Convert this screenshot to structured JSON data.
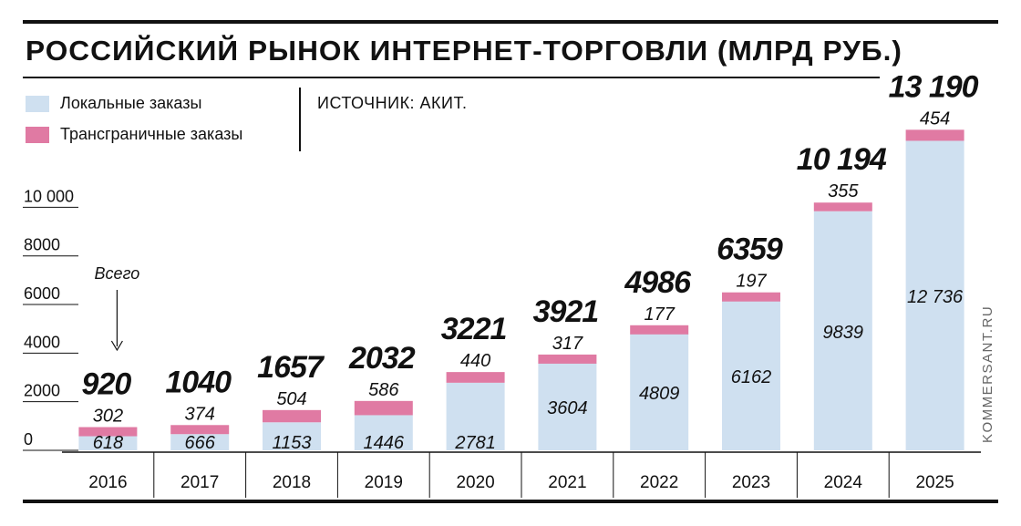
{
  "header": {
    "title": "РОССИЙСКИЙ РЫНОК ИНТЕРНЕТ-ТОРГОВЛИ (МЛРД РУБ.)",
    "source": "ИСТОЧНИК: АКИТ."
  },
  "legend": [
    {
      "label": "Локальные заказы",
      "color": "#cfe0f0"
    },
    {
      "label": "Трансграничные заказы",
      "color": "#e07aa3"
    }
  ],
  "watermark": "KOMMERSANT.RU",
  "annotation": "Всего",
  "chart_data": {
    "type": "bar",
    "categories": [
      "2016",
      "2017",
      "2018",
      "2019",
      "2020",
      "2021",
      "2022",
      "2023",
      "2024",
      "2025"
    ],
    "series": [
      {
        "name": "Локальные заказы",
        "values": [
          618,
          666,
          1153,
          1446,
          2781,
          3604,
          4809,
          6162,
          9839,
          12736
        ],
        "color": "#cfe0f0"
      },
      {
        "name": "Трансграничные заказы",
        "values": [
          302,
          374,
          504,
          586,
          440,
          317,
          177,
          197,
          355,
          454
        ],
        "color": "#e07aa3"
      }
    ],
    "totals": [
      920,
      1040,
      1657,
      2032,
      3221,
      3921,
      4986,
      6359,
      10194,
      13190
    ],
    "total_labels": [
      "920",
      "1040",
      "1657",
      "2032",
      "3221",
      "3921",
      "4986",
      "6359",
      "10 194",
      "13 190"
    ],
    "local_labels": [
      "618",
      "666",
      "1153",
      "1446",
      "2781",
      "3604",
      "4809",
      "6162",
      "9839",
      "12 736"
    ],
    "cross_labels": [
      "302",
      "374",
      "504",
      "586",
      "440",
      "317",
      "177",
      "197",
      "355",
      "454"
    ],
    "y_ticks": [
      0,
      2000,
      4000,
      6000,
      8000,
      10000
    ],
    "y_tick_labels": [
      "0",
      "2000",
      "4000",
      "6000",
      "8000",
      "10 000"
    ],
    "ylim": [
      0,
      13190
    ],
    "grid": false
  }
}
